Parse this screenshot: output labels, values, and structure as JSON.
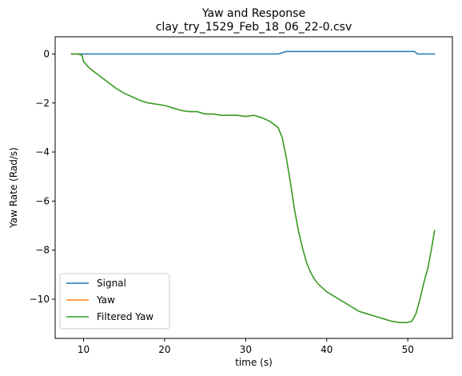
{
  "chart_data": {
    "type": "line",
    "title": "Yaw and Response",
    "subtitle": "clay_try_1529_Feb_18_06_22-0.csv",
    "xlabel": "time (s)",
    "ylabel": "Yaw Rate (Rad/s)",
    "xlim": [
      6.5,
      55.5
    ],
    "ylim": [
      -11.6,
      0.7
    ],
    "xticks": [
      10,
      20,
      30,
      40,
      50
    ],
    "yticks": [
      0,
      -2,
      -4,
      -6,
      -8,
      -10
    ],
    "xtick_labels": [
      "10",
      "20",
      "30",
      "40",
      "50"
    ],
    "ytick_labels": [
      "0",
      "−2",
      "−4",
      "−6",
      "−8",
      "−10"
    ],
    "grid": false,
    "legend_position": "lower-left",
    "series": [
      {
        "name": "Signal",
        "color": "#1f77b4",
        "x": [
          8.5,
          10.0,
          20.0,
          30.0,
          34.0,
          34.3,
          34.8,
          35.0,
          40.0,
          45.0,
          50.0,
          50.8,
          51.0,
          51.2,
          53.3
        ],
        "y": [
          0.0,
          0.0,
          0.0,
          0.0,
          0.0,
          0.03,
          0.08,
          0.1,
          0.1,
          0.1,
          0.1,
          0.1,
          0.05,
          0.0,
          0.0
        ]
      },
      {
        "name": "Yaw",
        "color": "#ff7f0e",
        "x": [
          8.5,
          9.3,
          9.8,
          10.0,
          10.5,
          11.0,
          12.0,
          13.0,
          14.0,
          15.0,
          16.0,
          17.0,
          18.0,
          19.0,
          20.0,
          21.0,
          22.0,
          23.0,
          24.0,
          25.0,
          26.0,
          27.0,
          28.0,
          29.0,
          30.0,
          31.0,
          32.0,
          33.0,
          34.0,
          34.5,
          35.0,
          35.5,
          36.0,
          36.5,
          37.0,
          37.5,
          38.0,
          38.5,
          39.0,
          39.5,
          40.0,
          41.0,
          42.0,
          43.0,
          44.0,
          45.0,
          46.0,
          47.0,
          48.0,
          49.0,
          50.0,
          50.5,
          51.0,
          51.5,
          52.0,
          52.5,
          53.0,
          53.3
        ],
        "y": [
          0.0,
          0.0,
          -0.05,
          -0.3,
          -0.5,
          -0.65,
          -0.9,
          -1.15,
          -1.4,
          -1.6,
          -1.75,
          -1.9,
          -2.0,
          -2.05,
          -2.1,
          -2.2,
          -2.3,
          -2.35,
          -2.35,
          -2.45,
          -2.45,
          -2.5,
          -2.5,
          -2.5,
          -2.55,
          -2.5,
          -2.6,
          -2.75,
          -3.0,
          -3.4,
          -4.2,
          -5.2,
          -6.3,
          -7.2,
          -7.9,
          -8.5,
          -8.9,
          -9.2,
          -9.4,
          -9.55,
          -9.7,
          -9.9,
          -10.1,
          -10.3,
          -10.5,
          -10.6,
          -10.7,
          -10.8,
          -10.9,
          -10.95,
          -10.95,
          -10.9,
          -10.6,
          -10.0,
          -9.3,
          -8.7,
          -7.8,
          -7.2
        ]
      },
      {
        "name": "Filtered Yaw",
        "color": "#2ca02c",
        "x": [
          8.5,
          9.3,
          9.8,
          10.0,
          10.5,
          11.0,
          12.0,
          13.0,
          14.0,
          15.0,
          16.0,
          17.0,
          18.0,
          19.0,
          20.0,
          21.0,
          22.0,
          23.0,
          24.0,
          25.0,
          26.0,
          27.0,
          28.0,
          29.0,
          30.0,
          31.0,
          32.0,
          33.0,
          34.0,
          34.5,
          35.0,
          35.5,
          36.0,
          36.5,
          37.0,
          37.5,
          38.0,
          38.5,
          39.0,
          39.5,
          40.0,
          41.0,
          42.0,
          43.0,
          44.0,
          45.0,
          46.0,
          47.0,
          48.0,
          49.0,
          50.0,
          50.5,
          51.0,
          51.5,
          52.0,
          52.5,
          53.0,
          53.3
        ],
        "y": [
          0.0,
          0.0,
          -0.05,
          -0.3,
          -0.5,
          -0.65,
          -0.9,
          -1.15,
          -1.4,
          -1.6,
          -1.75,
          -1.9,
          -2.0,
          -2.05,
          -2.1,
          -2.2,
          -2.3,
          -2.35,
          -2.35,
          -2.45,
          -2.45,
          -2.5,
          -2.5,
          -2.5,
          -2.55,
          -2.5,
          -2.6,
          -2.75,
          -3.0,
          -3.4,
          -4.2,
          -5.2,
          -6.3,
          -7.2,
          -7.9,
          -8.5,
          -8.9,
          -9.2,
          -9.4,
          -9.55,
          -9.7,
          -9.9,
          -10.1,
          -10.3,
          -10.5,
          -10.6,
          -10.7,
          -10.8,
          -10.9,
          -10.95,
          -10.95,
          -10.9,
          -10.6,
          -10.0,
          -9.3,
          -8.7,
          -7.8,
          -7.2
        ]
      }
    ]
  }
}
